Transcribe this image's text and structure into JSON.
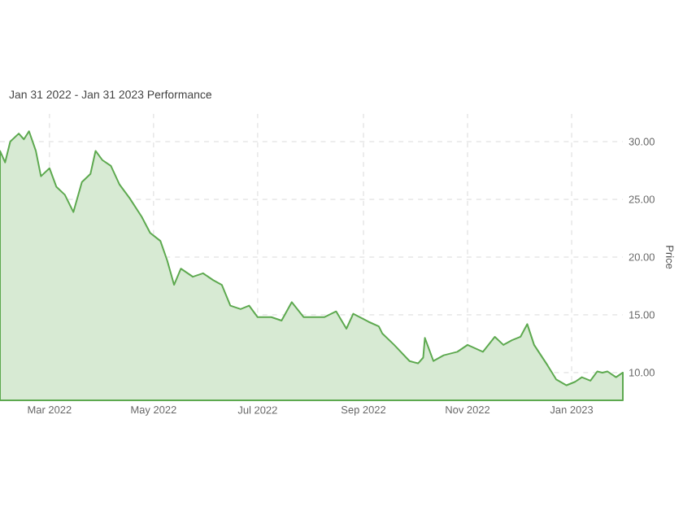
{
  "chart_data": {
    "type": "area",
    "title": "Jan 31 2022 - Jan 31 2023 Performance",
    "ylabel": "Price",
    "x": [
      "2022-01-31",
      "2022-02-03",
      "2022-02-06",
      "2022-02-11",
      "2022-02-14",
      "2022-02-17",
      "2022-02-21",
      "2022-02-24",
      "2022-03-01",
      "2022-03-05",
      "2022-03-10",
      "2022-03-15",
      "2022-03-20",
      "2022-03-25",
      "2022-03-28",
      "2022-04-01",
      "2022-04-06",
      "2022-04-11",
      "2022-04-17",
      "2022-04-24",
      "2022-04-29",
      "2022-05-05",
      "2022-05-09",
      "2022-05-13",
      "2022-05-17",
      "2022-05-24",
      "2022-05-30",
      "2022-06-05",
      "2022-06-10",
      "2022-06-15",
      "2022-06-21",
      "2022-06-26",
      "2022-07-01",
      "2022-07-09",
      "2022-07-15",
      "2022-07-21",
      "2022-07-28",
      "2022-08-09",
      "2022-08-16",
      "2022-08-22",
      "2022-08-26",
      "2022-09-04",
      "2022-09-10",
      "2022-09-12",
      "2022-09-19",
      "2022-09-28",
      "2022-10-03",
      "2022-10-06",
      "2022-10-07",
      "2022-10-12",
      "2022-10-18",
      "2022-10-26",
      "2022-11-01",
      "2022-11-10",
      "2022-11-17",
      "2022-11-22",
      "2022-11-27",
      "2022-12-02",
      "2022-12-06",
      "2022-12-10",
      "2022-12-18",
      "2022-12-23",
      "2022-12-29",
      "2023-01-03",
      "2023-01-07",
      "2023-01-12",
      "2023-01-16",
      "2023-01-19",
      "2023-01-22",
      "2023-01-27",
      "2023-01-31"
    ],
    "values": [
      29.2,
      28.2,
      30.0,
      30.7,
      30.2,
      30.9,
      29.2,
      27.0,
      27.7,
      26.1,
      25.4,
      23.9,
      26.5,
      27.2,
      29.2,
      28.4,
      27.9,
      26.3,
      25.1,
      23.5,
      22.1,
      21.4,
      19.7,
      17.6,
      19.0,
      18.3,
      18.6,
      18.0,
      17.6,
      15.8,
      15.5,
      15.8,
      14.8,
      14.8,
      14.5,
      16.1,
      14.8,
      14.8,
      15.3,
      13.8,
      15.1,
      14.4,
      14.0,
      13.4,
      12.4,
      11.0,
      10.8,
      11.3,
      13.0,
      11.0,
      11.5,
      11.8,
      12.4,
      11.8,
      13.1,
      12.4,
      12.8,
      13.1,
      14.2,
      12.4,
      10.6,
      9.4,
      8.9,
      9.2,
      9.6,
      9.3,
      10.1,
      10.0,
      10.1,
      9.6,
      10.0
    ],
    "color": "#5da94f",
    "xlim": [
      "2022-01-31",
      "2023-01-31"
    ],
    "xticks": [
      {
        "value": "2022-03-01",
        "label": "Mar 2022"
      },
      {
        "value": "2022-05-01",
        "label": "May 2022"
      },
      {
        "value": "2022-07-01",
        "label": "Jul 2022"
      },
      {
        "value": "2022-09-01",
        "label": "Sep 2022"
      },
      {
        "value": "2022-11-01",
        "label": "Nov 2022"
      },
      {
        "value": "2023-01-01",
        "label": "Jan 2023"
      }
    ],
    "ylim": [
      7.6,
      32.4
    ],
    "yticks": [
      {
        "value": 10,
        "label": "10.00"
      },
      {
        "value": 15,
        "label": "15.00"
      },
      {
        "value": 20,
        "label": "20.00"
      },
      {
        "value": 25,
        "label": "25.00"
      },
      {
        "value": 30,
        "label": "30.00"
      }
    ],
    "grid": true
  }
}
